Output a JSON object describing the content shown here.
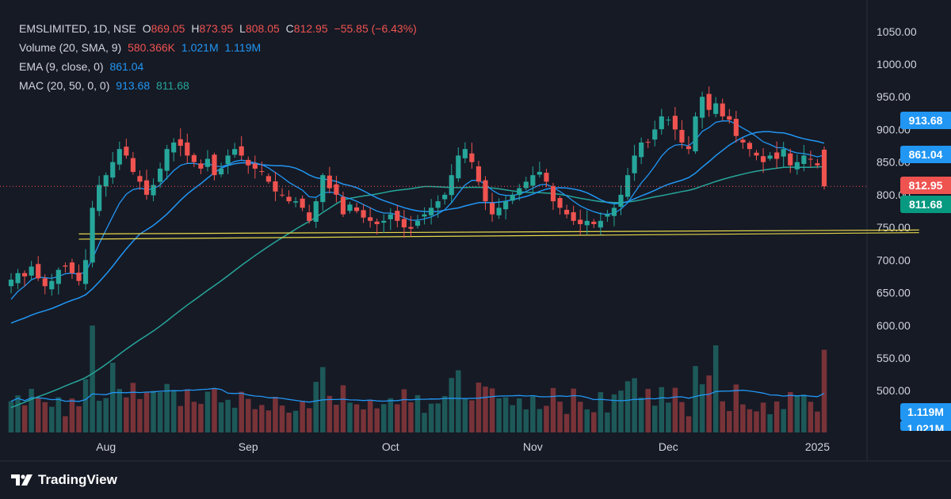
{
  "colors": {
    "background": "#161a25",
    "up": "#26a69a",
    "down": "#ef5350",
    "ema": "#2196f3",
    "ma20": "#2196f3",
    "ma50": "#26a69a",
    "support": "#e6d84a",
    "text": "#d1d4dc"
  },
  "legend": {
    "symbol": "EMSLIMITED, 1D, NSE",
    "o_label": "O",
    "o_value": "869.05",
    "h_label": "H",
    "h_value": "873.95",
    "l_label": "L",
    "l_value": "808.05",
    "c_label": "C",
    "c_value": "812.95",
    "change": "−55.85 (−6.43%)",
    "volume_label": "Volume (20, SMA, 9)",
    "volume_v1": "580.366K",
    "volume_v2": "1.021M",
    "volume_v3": "1.119M",
    "ema_label": "EMA (9, close, 0)",
    "ema_value": "861.04",
    "mac_label": "MAC (20, 50, 0, 0)",
    "mac_v1": "913.68",
    "mac_v2": "811.68"
  },
  "price_tags": {
    "ma20": "913.68",
    "ema": "861.04",
    "close": "812.95",
    "ma50": "811.68",
    "vol_sma": "1.119M",
    "vol_sma2": "1.021M"
  },
  "watermark": "TradingView",
  "chart_data": {
    "type": "candlestick",
    "y_ticks": [
      500,
      550,
      600,
      650,
      700,
      750,
      800,
      850,
      900,
      950,
      1000,
      1050
    ],
    "y_tick_labels": [
      "500.00",
      "550.00",
      "600.00",
      "650.00",
      "700.00",
      "750.00",
      "800.00",
      "850.00",
      "900.00",
      "950.00",
      "1000.00",
      "1050.00"
    ],
    "x_ticks": [
      {
        "label": "Aug",
        "index": 14
      },
      {
        "label": "Sep",
        "index": 35
      },
      {
        "label": "Oct",
        "index": 56
      },
      {
        "label": "Nov",
        "index": 77
      },
      {
        "label": "Dec",
        "index": 97
      },
      {
        "label": "2025",
        "index": 119
      }
    ],
    "ylim": [
      475,
      1080
    ],
    "support_lines": [
      {
        "from_index": 10,
        "to_index": 134,
        "start": 740,
        "end": 746
      },
      {
        "from_index": 10,
        "to_index": 134,
        "start": 732,
        "end": 742
      }
    ],
    "closes": [
      670,
      680,
      675,
      690,
      672,
      660,
      668,
      685,
      690,
      680,
      668,
      700,
      780,
      815,
      830,
      850,
      870,
      860,
      835,
      820,
      800,
      815,
      840,
      870,
      880,
      875,
      860,
      850,
      840,
      855,
      830,
      840,
      860,
      870,
      860,
      845,
      840,
      835,
      820,
      805,
      800,
      790,
      790,
      780,
      760,
      790,
      830,
      810,
      800,
      770,
      785,
      775,
      765,
      760,
      755,
      760,
      770,
      760,
      750,
      748,
      760,
      770,
      780,
      790,
      800,
      830,
      860,
      870,
      850,
      820,
      790,
      770,
      780,
      790,
      800,
      810,
      820,
      830,
      835,
      820,
      790,
      780,
      770,
      760,
      755,
      760,
      755,
      760,
      770,
      780,
      800,
      830,
      860,
      880,
      880,
      900,
      920,
      915,
      900,
      880,
      870,
      920,
      950,
      930,
      940,
      920,
      915,
      890,
      880,
      870,
      860,
      850,
      860,
      855,
      870,
      845,
      850,
      860,
      855,
      845,
      813
    ],
    "ema9": [
      640,
      652,
      660,
      670,
      674,
      673,
      672,
      675,
      679,
      680,
      678,
      682,
      702,
      725,
      746,
      767,
      787,
      801,
      808,
      810,
      808,
      809,
      815,
      826,
      837,
      845,
      848,
      848,
      846,
      848,
      844,
      843,
      846,
      851,
      853,
      851,
      849,
      846,
      841,
      834,
      827,
      819,
      813,
      807,
      797,
      796,
      803,
      804,
      803,
      797,
      794,
      790,
      785,
      780,
      775,
      772,
      772,
      769,
      765,
      761,
      761,
      763,
      766,
      771,
      777,
      788,
      802,
      815,
      822,
      822,
      816,
      807,
      801,
      799,
      799,
      801,
      805,
      810,
      815,
      816,
      811,
      805,
      798,
      790,
      783,
      778,
      774,
      771,
      770,
      772,
      778,
      788,
      803,
      818,
      830,
      844,
      859,
      870,
      876,
      877,
      875,
      884,
      897,
      903,
      911,
      913,
      913,
      908,
      902,
      896,
      889,
      881,
      877,
      872,
      872,
      867,
      864,
      863,
      861,
      858,
      861
    ]
  }
}
